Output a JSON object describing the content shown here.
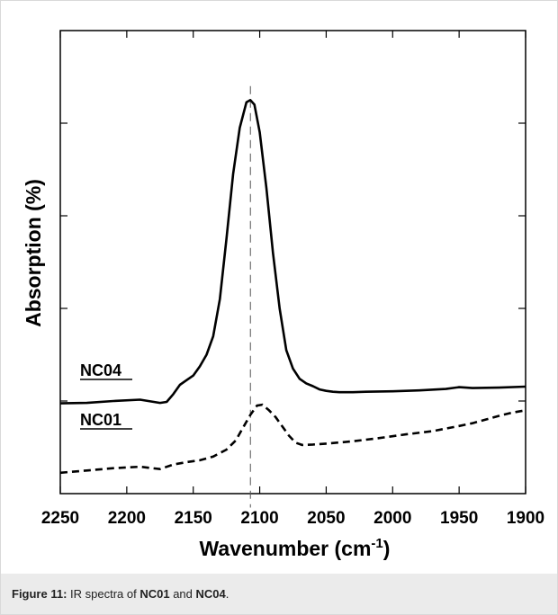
{
  "chart_data": {
    "type": "line",
    "title": "",
    "xlabel": "Wavenumber (cm",
    "xlabel_superscript": "-1",
    "xlabel_close": ")",
    "ylabel": "Absorption (%)",
    "x_reversed": true,
    "xlim": [
      2250,
      1900
    ],
    "ylim": [
      0,
      100
    ],
    "y_tick_values": [
      20,
      40,
      60,
      80
    ],
    "x_tick_labels": [
      "2250",
      "2200",
      "2150",
      "2100",
      "2050",
      "2000",
      "1950",
      "1900"
    ],
    "grid": false,
    "reference_line_x": 2107,
    "series": [
      {
        "name": "NC04",
        "style": "solid",
        "x": [
          2250,
          2230,
          2210,
          2190,
          2175,
          2170,
          2165,
          2160,
          2155,
          2150,
          2145,
          2140,
          2135,
          2130,
          2125,
          2120,
          2115,
          2110,
          2107,
          2104,
          2100,
          2095,
          2090,
          2085,
          2080,
          2075,
          2070,
          2065,
          2060,
          2055,
          2050,
          2045,
          2040,
          2030,
          2020,
          2000,
          1980,
          1960,
          1950,
          1940,
          1920,
          1900
        ],
        "y": [
          19.5,
          19.6,
          20.0,
          20.3,
          19.6,
          19.8,
          21.5,
          23.5,
          24.5,
          25.5,
          27.5,
          30.0,
          34.0,
          42.0,
          55.0,
          69.0,
          79.0,
          84.5,
          85.0,
          84.0,
          78.0,
          66.0,
          52.0,
          40.0,
          31.0,
          27.0,
          24.8,
          23.8,
          23.2,
          22.5,
          22.2,
          22.0,
          21.9,
          21.9,
          22.0,
          22.1,
          22.3,
          22.6,
          23.0,
          22.8,
          22.9,
          23.1
        ]
      },
      {
        "name": "NC01",
        "style": "dashed",
        "x": [
          2250,
          2230,
          2210,
          2190,
          2175,
          2165,
          2155,
          2145,
          2135,
          2125,
          2118,
          2112,
          2107,
          2102,
          2098,
          2093,
          2088,
          2083,
          2078,
          2073,
          2068,
          2060,
          2050,
          2030,
          2010,
          1990,
          1970,
          1950,
          1940,
          1930,
          1920,
          1910,
          1900
        ],
        "y": [
          4.5,
          5.0,
          5.5,
          5.8,
          5.3,
          6.3,
          6.8,
          7.2,
          8.0,
          9.5,
          11.5,
          14.5,
          17.0,
          19.0,
          19.2,
          18.0,
          16.5,
          14.5,
          12.5,
          11.0,
          10.5,
          10.6,
          10.8,
          11.3,
          12.0,
          12.8,
          13.5,
          14.6,
          15.2,
          16.0,
          16.8,
          17.5,
          18.0
        ]
      }
    ]
  },
  "figure": {
    "caption_prefix": "Figure 11:",
    "caption_text_1": " IR spectra of ",
    "caption_bold_1": "NC01",
    "caption_text_2": " and ",
    "caption_bold_2": "NC04",
    "caption_text_3": "."
  }
}
